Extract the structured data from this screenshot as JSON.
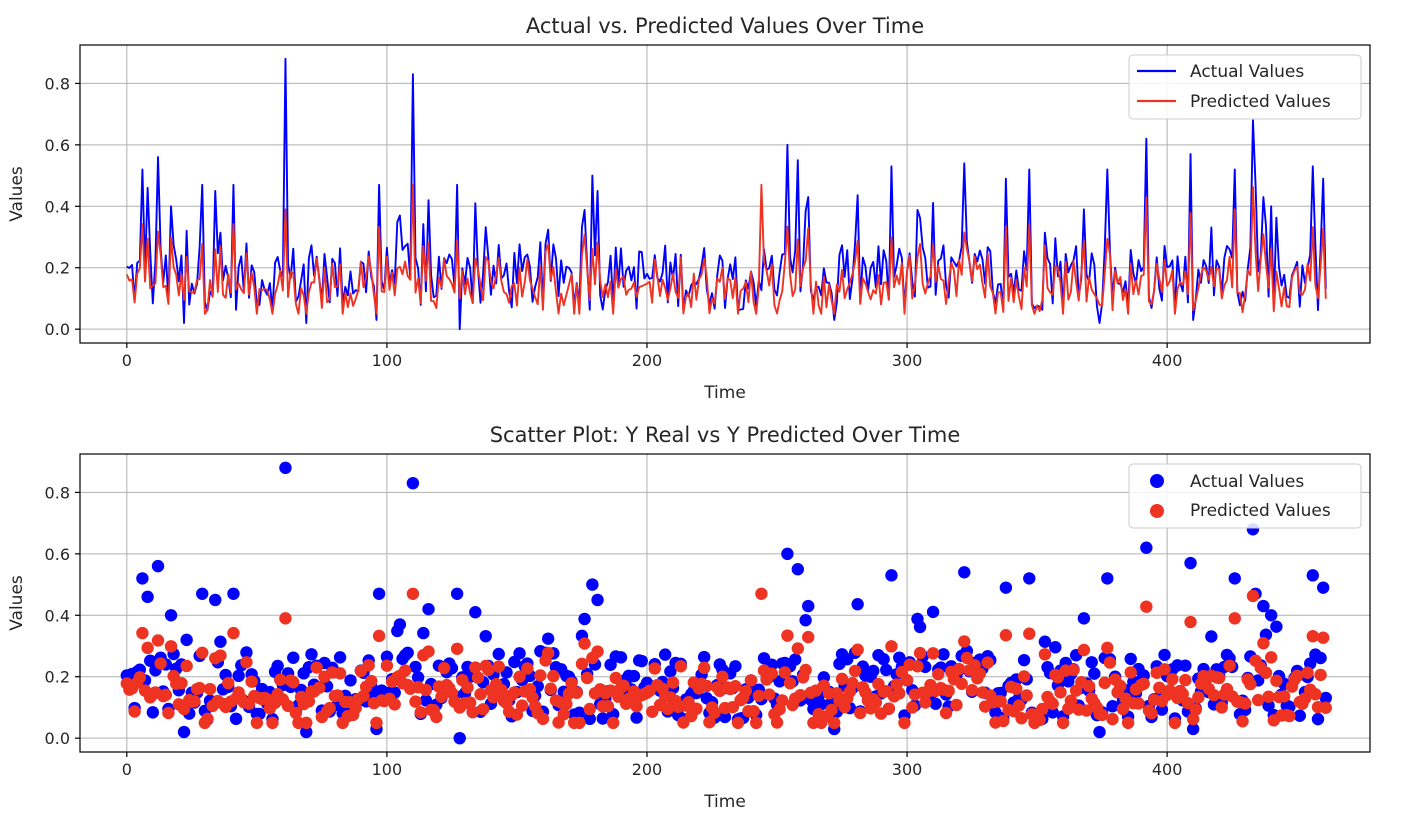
{
  "colors": {
    "actual": "#0000ff",
    "predicted": "#ee3322"
  },
  "chart_data": [
    {
      "type": "line",
      "title": "Actual vs. Predicted Values Over Time",
      "xlabel": "Time",
      "ylabel": "Values",
      "xlim": [
        -18,
        478
      ],
      "ylim": [
        -0.045,
        0.925
      ],
      "xticks": [
        "0",
        "100",
        "200",
        "300",
        "400"
      ],
      "yticks": [
        "0.0",
        "0.2",
        "0.4",
        "0.6",
        "0.8"
      ],
      "grid": true,
      "legend_position": "top-right",
      "series": [
        {
          "name": "Actual Values",
          "style": "line",
          "color": "#0000ff",
          "values": []
        },
        {
          "name": "Predicted Values",
          "style": "line",
          "color": "#ee3322",
          "values": []
        }
      ]
    },
    {
      "type": "scatter",
      "title": "Scatter Plot: Y Real vs Y Predicted Over Time",
      "xlabel": "Time",
      "ylabel": "Values",
      "xlim": [
        -18,
        478
      ],
      "ylim": [
        -0.045,
        0.925
      ],
      "xticks": [
        "0",
        "100",
        "200",
        "300",
        "400"
      ],
      "yticks": [
        "0.0",
        "0.2",
        "0.4",
        "0.6",
        "0.8"
      ],
      "grid": true,
      "legend_position": "top-right",
      "series": [
        {
          "name": "Actual Values",
          "style": "points",
          "color": "#0000ff",
          "values": []
        },
        {
          "name": "Predicted Values",
          "style": "points",
          "color": "#ee3322",
          "values": []
        }
      ]
    }
  ]
}
